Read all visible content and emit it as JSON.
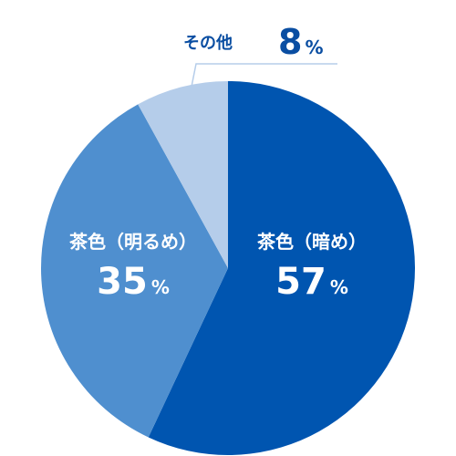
{
  "chart_data": {
    "type": "pie",
    "start_angle_deg": 0,
    "direction": "clockwise",
    "slices": [
      {
        "label": "茶色（暗め）",
        "value": 57,
        "unit": "%",
        "color": "#0055b0",
        "label_color": "#ffffff"
      },
      {
        "label": "茶色（明るめ）",
        "value": 35,
        "unit": "%",
        "color": "#4f8fcf",
        "label_color": "#ffffff"
      },
      {
        "label": "その他",
        "value": 8,
        "unit": "%",
        "color": "#b5cdea",
        "label_color": "#0a4ea2"
      }
    ],
    "leader_line_color": "#b5cdea"
  }
}
